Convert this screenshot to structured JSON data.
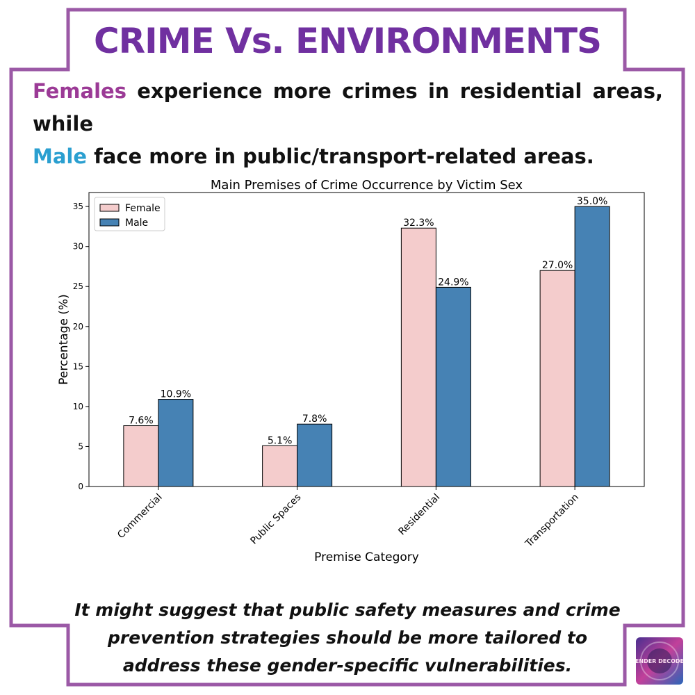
{
  "header": {
    "title": "CRIME Vs. ENVIRONMENTS",
    "intro_female_word": "Females",
    "intro_line1_rest": " experience more crimes in residential areas, while",
    "intro_male_word": "Male",
    "intro_line2_rest": " face more in public/transport-related areas."
  },
  "footer": {
    "conclusion": "It might suggest that public safety measures and crime prevention strategies should be more tailored to address these gender-specific vulnerabilities.",
    "logo_text": "GENDER DECODED"
  },
  "colors": {
    "frame": "#9b59a6",
    "title": "#7030a0",
    "female_word": "#9b3a96",
    "male_word": "#2a9fd0",
    "female_bar": "#f4cccc",
    "male_bar": "#4682b4"
  },
  "chart_data": {
    "type": "bar",
    "title": "Main Premises of Crime Occurrence by Victim Sex",
    "xlabel": "Premise Category",
    "ylabel": "Percentage (%)",
    "categories": [
      "Commercial",
      "Public Spaces",
      "Residential",
      "Transportation"
    ],
    "series": [
      {
        "name": "Female",
        "values": [
          7.6,
          5.1,
          32.3,
          27.0
        ],
        "labels": [
          "7.6%",
          "5.1%",
          "32.3%",
          "27.0%"
        ]
      },
      {
        "name": "Male",
        "values": [
          10.9,
          7.8,
          24.9,
          35.0
        ],
        "labels": [
          "10.9%",
          "7.8%",
          "24.9%",
          "35.0%"
        ]
      }
    ],
    "yticks": [
      0,
      5,
      10,
      15,
      20,
      25,
      30,
      35
    ],
    "ylim": [
      0,
      36.75
    ],
    "grid": false,
    "legend": "top-left"
  }
}
